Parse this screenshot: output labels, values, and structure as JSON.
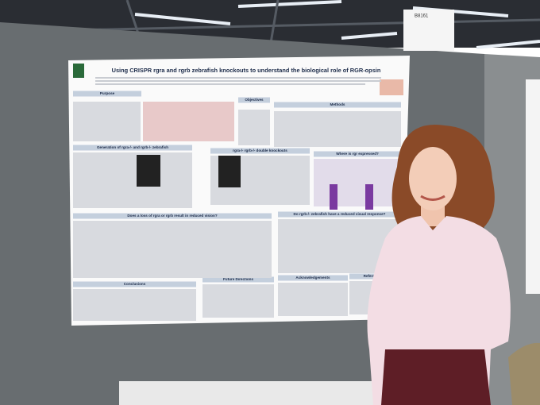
{
  "sign": "B8161",
  "poster": {
    "title": "Using CRISPR rgra and rgrb zebrafish knockouts to understand the biological role of RGR-opsin",
    "sections": [
      "Purpose",
      "Objectives",
      "Methods",
      "Generation of rgra-/- and rgrb-/- zebrafish",
      "rgra-/- rgrb-/- double knockouts",
      "Where is rgr expressed?",
      "Does a loss of rgra or rgrb result in reduced vision?",
      "Do rgrb-/- zebrafish have a reduced visual response?",
      "Conclusions",
      "Future Directions",
      "Acknowledgements",
      "References"
    ]
  }
}
